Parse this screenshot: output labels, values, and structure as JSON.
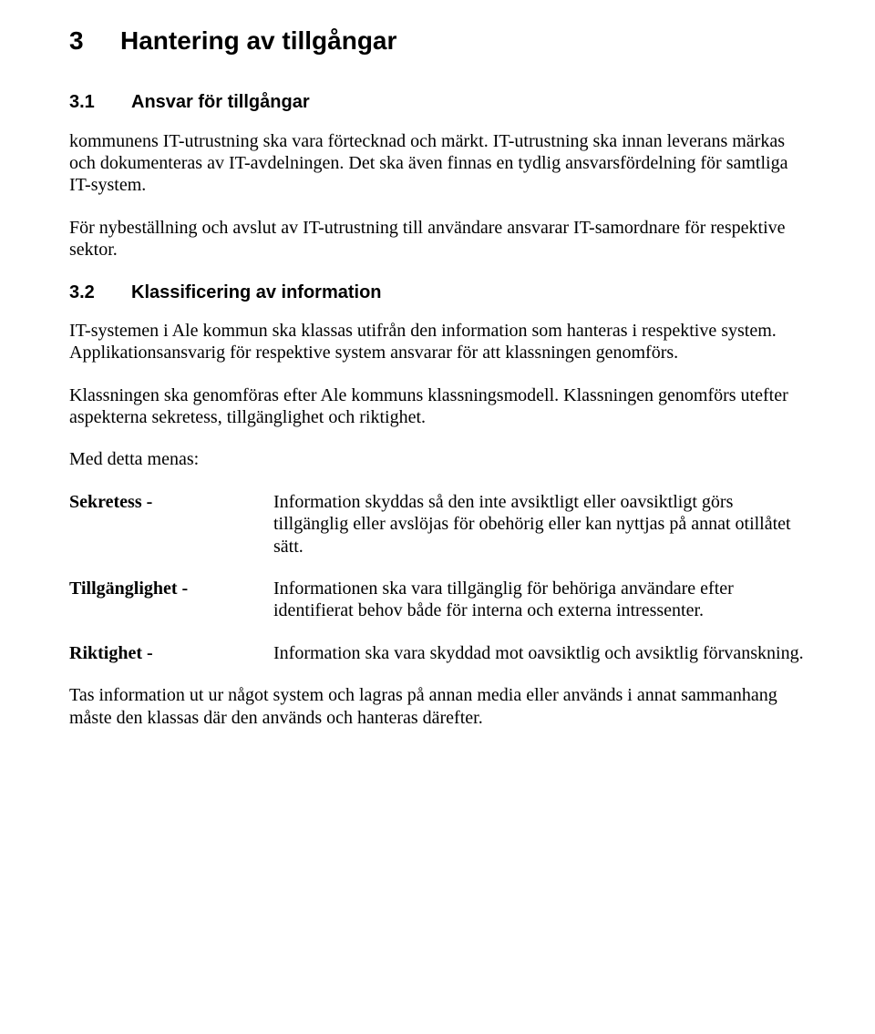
{
  "h1": {
    "num": "3",
    "title": "Hantering av tillgångar"
  },
  "s31": {
    "num": "3.1",
    "title": "Ansvar för tillgångar",
    "p1": "kommunens IT-utrustning ska vara förtecknad och märkt. IT-utrustning ska innan leverans märkas och dokumenteras av IT-avdelningen. Det ska även finnas en tydlig ansvarsfördelning för samtliga IT-system.",
    "p2": "För nybeställning och avslut av IT-utrustning till användare ansvarar IT-samordnare för respektive sektor."
  },
  "s32": {
    "num": "3.2",
    "title": "Klassificering av information",
    "p1": "IT-systemen i Ale kommun ska klassas utifrån den information som hanteras i respektive system. Applikationsansvarig för respektive system ansvarar för att klassningen genomförs.",
    "p2": "Klassningen ska genomföras efter Ale kommuns klassningsmodell. Klassningen genomförs utefter aspekterna sekretess, tillgänglighet och riktighet.",
    "p3": "Med detta menas:",
    "defs": [
      {
        "term": "Sekretess -",
        "desc": "Information skyddas så den inte avsiktligt eller oavsiktligt görs tillgänglig eller avslöjas för obehörig eller kan nyttjas på annat otillåtet sätt."
      },
      {
        "term": "Tillgänglighet -",
        "desc": "Informationen ska vara tillgänglig för behöriga användare efter identifierat behov både för interna och externa intressenter."
      },
      {
        "term": "Riktighet -",
        "desc": "Information ska vara skyddad mot oavsiktlig och avsiktlig förvanskning."
      }
    ],
    "p4": "Tas information ut ur något system och lagras på annan media eller används i annat sammanhang måste den klassas där den används och hanteras därefter."
  }
}
